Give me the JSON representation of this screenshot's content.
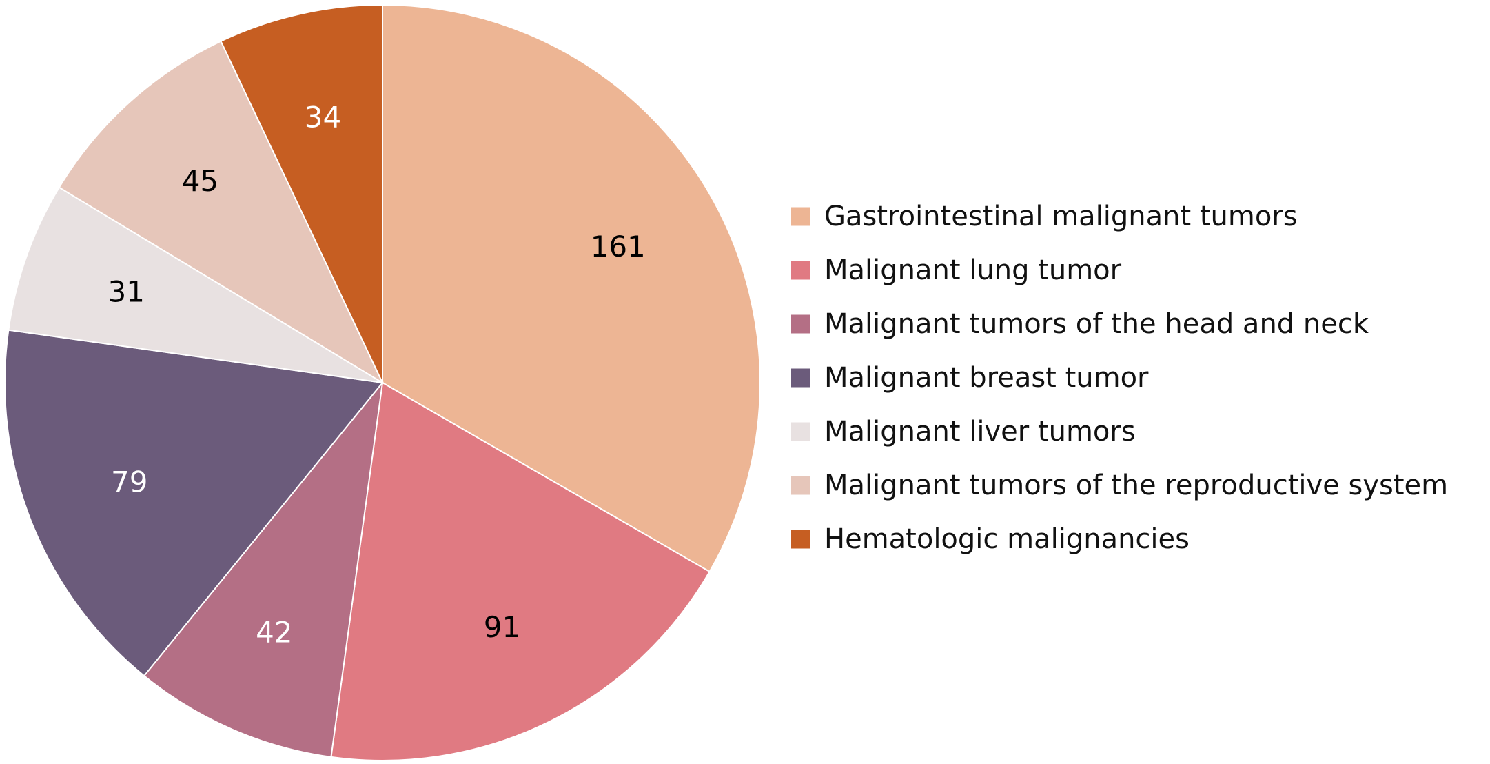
{
  "chart_data": {
    "type": "pie",
    "title": "",
    "legend_position": "right",
    "slices": [
      {
        "label": "Gastrointestinal malignant tumors",
        "value": 161,
        "color": "#EDB594",
        "label_color": "#000000"
      },
      {
        "label": "Malignant lung tumor",
        "value": 91,
        "color": "#E07A82",
        "label_color": "#000000"
      },
      {
        "label": "Malignant tumors of the head and neck",
        "value": 42,
        "color": "#B46F85",
        "label_color": "#ffffff"
      },
      {
        "label": "Malignant breast tumor",
        "value": 79,
        "color": "#6B5B7B",
        "label_color": "#ffffff"
      },
      {
        "label": "Malignant liver tumors",
        "value": 31,
        "color": "#E8E1E1",
        "label_color": "#000000"
      },
      {
        "label": "Malignant tumors of the reproductive system",
        "value": 45,
        "color": "#E6C6BA",
        "label_color": "#000000"
      },
      {
        "label": "Hematologic malignancies",
        "value": 34,
        "color": "#C65E22",
        "label_color": "#ffffff"
      }
    ]
  }
}
